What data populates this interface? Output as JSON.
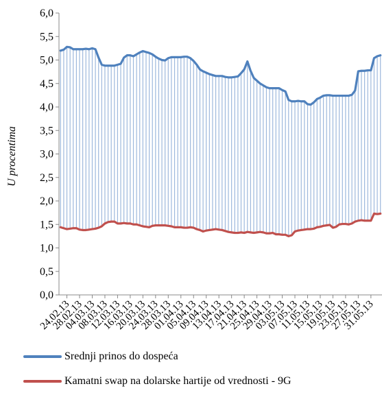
{
  "chart_data": {
    "type": "line",
    "title": "",
    "xlabel": "",
    "ylabel": "U procentima",
    "ylim": [
      0,
      6
    ],
    "yticks": [
      "0,0",
      "0,5",
      "1,0",
      "1,5",
      "2,0",
      "2,5",
      "3,0",
      "3,5",
      "4,0",
      "4,5",
      "5,0",
      "5,5",
      "6,0"
    ],
    "xticks": [
      "24.02.13",
      "28.02.13",
      "04.03.13",
      "08.03.13",
      "12.03.13",
      "16.03.13",
      "20.03.13",
      "24.03.13",
      "28.03.13",
      "01.04.13",
      "05.04.13",
      "09.04.13",
      "13.04.13",
      "17.04.13",
      "21.04.13",
      "25.04.13",
      "29.04.13",
      "03.05.13",
      "07.05.13",
      "11.05.13",
      "15.05.13",
      "19.05.13",
      "23.05.13",
      "27.05.13",
      "31.05.13"
    ],
    "x": [
      "22.02.13",
      "23.02.13",
      "24.02.13",
      "25.02.13",
      "26.02.13",
      "27.02.13",
      "28.02.13",
      "01.03.13",
      "02.03.13",
      "03.03.13",
      "04.03.13",
      "05.03.13",
      "06.03.13",
      "07.03.13",
      "08.03.13",
      "09.03.13",
      "10.03.13",
      "11.03.13",
      "12.03.13",
      "13.03.13",
      "14.03.13",
      "15.03.13",
      "16.03.13",
      "17.03.13",
      "18.03.13",
      "19.03.13",
      "20.03.13",
      "21.03.13",
      "22.03.13",
      "23.03.13",
      "24.03.13",
      "25.03.13",
      "26.03.13",
      "27.03.13",
      "28.03.13",
      "29.03.13",
      "30.03.13",
      "31.03.13",
      "01.04.13",
      "02.04.13",
      "03.04.13",
      "04.04.13",
      "05.04.13",
      "06.04.13",
      "07.04.13",
      "08.04.13",
      "09.04.13",
      "10.04.13",
      "11.04.13",
      "12.04.13",
      "13.04.13",
      "14.04.13",
      "15.04.13",
      "16.04.13",
      "17.04.13",
      "18.04.13",
      "19.04.13",
      "20.04.13",
      "21.04.13",
      "22.04.13",
      "23.04.13",
      "24.04.13",
      "25.04.13",
      "26.04.13",
      "27.04.13",
      "28.04.13",
      "29.04.13",
      "30.04.13",
      "01.05.13",
      "02.05.13",
      "03.05.13",
      "04.05.13",
      "05.05.13",
      "06.05.13",
      "07.05.13",
      "08.05.13",
      "09.05.13",
      "10.05.13",
      "11.05.13",
      "12.05.13",
      "13.05.13",
      "14.05.13",
      "15.05.13",
      "16.05.13",
      "17.05.13",
      "18.05.13",
      "19.05.13",
      "20.05.13",
      "21.05.13",
      "22.05.13",
      "23.05.13",
      "24.05.13",
      "25.05.13",
      "26.05.13",
      "27.05.13",
      "28.05.13",
      "29.05.13",
      "30.05.13",
      "31.05.13",
      "01.06.13",
      "02.06.13",
      "03.06.13"
    ],
    "series": [
      {
        "name": "Srednji prinos do dospeća",
        "color": "#4f81bd",
        "values": [
          5.2,
          5.22,
          5.28,
          5.27,
          5.23,
          5.23,
          5.23,
          5.23,
          5.24,
          5.23,
          5.25,
          5.23,
          5.05,
          4.9,
          4.88,
          4.88,
          4.88,
          4.88,
          4.9,
          4.92,
          5.05,
          5.1,
          5.1,
          5.08,
          5.12,
          5.16,
          5.19,
          5.17,
          5.15,
          5.12,
          5.07,
          5.03,
          5.0,
          4.99,
          5.04,
          5.06,
          5.06,
          5.06,
          5.06,
          5.07,
          5.07,
          5.04,
          4.98,
          4.9,
          4.8,
          4.76,
          4.73,
          4.7,
          4.68,
          4.66,
          4.66,
          4.66,
          4.64,
          4.63,
          4.63,
          4.64,
          4.65,
          4.72,
          4.8,
          4.97,
          4.77,
          4.62,
          4.56,
          4.5,
          4.46,
          4.42,
          4.4,
          4.4,
          4.4,
          4.4,
          4.36,
          4.33,
          4.15,
          4.12,
          4.12,
          4.13,
          4.12,
          4.12,
          4.06,
          4.05,
          4.1,
          4.17,
          4.2,
          4.24,
          4.25,
          4.25,
          4.24,
          4.24,
          4.24,
          4.24,
          4.24,
          4.24,
          4.26,
          4.35,
          4.76,
          4.77,
          4.77,
          4.78,
          4.78,
          5.04,
          5.08,
          5.1
        ]
      },
      {
        "name": "Kamatni swap na dolarske hartije od vrednosti - 9G",
        "color": "#c0504d",
        "values": [
          1.44,
          1.42,
          1.4,
          1.41,
          1.42,
          1.42,
          1.39,
          1.38,
          1.38,
          1.39,
          1.4,
          1.41,
          1.43,
          1.46,
          1.52,
          1.55,
          1.56,
          1.56,
          1.52,
          1.52,
          1.53,
          1.52,
          1.52,
          1.5,
          1.5,
          1.48,
          1.46,
          1.45,
          1.44,
          1.47,
          1.48,
          1.48,
          1.48,
          1.48,
          1.47,
          1.46,
          1.44,
          1.44,
          1.44,
          1.43,
          1.43,
          1.44,
          1.43,
          1.4,
          1.38,
          1.35,
          1.37,
          1.38,
          1.39,
          1.4,
          1.39,
          1.38,
          1.36,
          1.34,
          1.33,
          1.32,
          1.32,
          1.33,
          1.32,
          1.34,
          1.33,
          1.32,
          1.33,
          1.34,
          1.33,
          1.31,
          1.31,
          1.32,
          1.29,
          1.29,
          1.28,
          1.28,
          1.25,
          1.27,
          1.35,
          1.37,
          1.38,
          1.39,
          1.4,
          1.4,
          1.41,
          1.44,
          1.45,
          1.47,
          1.48,
          1.49,
          1.43,
          1.45,
          1.5,
          1.51,
          1.51,
          1.5,
          1.52,
          1.56,
          1.58,
          1.59,
          1.58,
          1.58,
          1.58,
          1.73,
          1.72,
          1.73
        ]
      }
    ],
    "legend_position": "bottom"
  }
}
